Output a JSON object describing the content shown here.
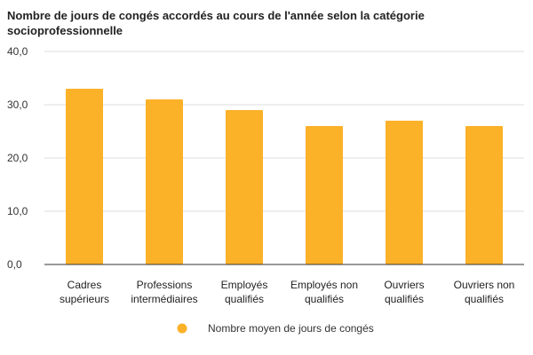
{
  "chart_data": {
    "type": "bar",
    "title": "Nombre de jours de congés accordés au cours de l'année selon la catégorie socioprofessionnelle",
    "categories": [
      "Cadres supérieurs",
      "Professions intermédiaires",
      "Employés qualifiés",
      "Employés non qualifiés",
      "Ouvriers qualifiés",
      "Ouvriers non qualifiés"
    ],
    "category_lines": [
      [
        "Cadres",
        "supérieurs"
      ],
      [
        "Professions",
        "intermédiaires"
      ],
      [
        "Employés",
        "qualifiés"
      ],
      [
        "Employés non",
        "qualifiés"
      ],
      [
        "Ouvriers",
        "qualifiés"
      ],
      [
        "Ouvriers non",
        "qualifiés"
      ]
    ],
    "series": [
      {
        "name": "Nombre moyen de jours de congés",
        "values": [
          33,
          31,
          29,
          26,
          27,
          26
        ]
      }
    ],
    "ylim": [
      0,
      40
    ],
    "yticks": [
      "0,0",
      "10,0",
      "20,0",
      "30,0",
      "40,0"
    ],
    "xlabel": "",
    "ylabel": "",
    "grid": true,
    "legend_position": "bottom",
    "bar_color": "#FBB128",
    "grid_color": "#DDDDDD",
    "axis_color": "#333333"
  }
}
